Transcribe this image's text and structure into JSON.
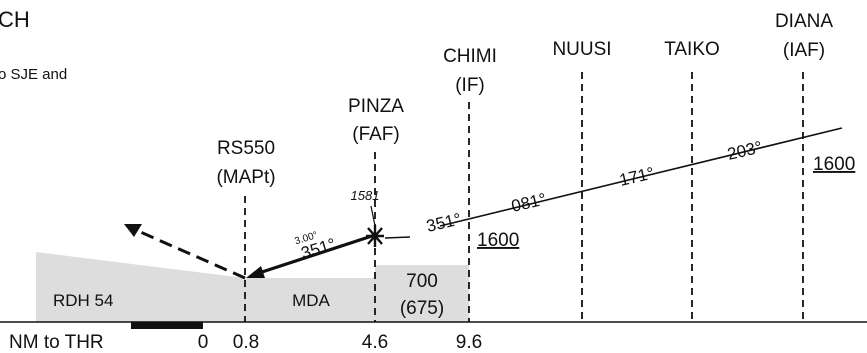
{
  "header": {
    "title_fragment": "CH",
    "note_fragment": "o SJE and"
  },
  "fixes": [
    {
      "name": "RS550",
      "role": "(MAPt)",
      "distance": "0.8"
    },
    {
      "name": "PINZA",
      "role": "(FAF)",
      "distance": "4.6"
    },
    {
      "name": "CHIMI",
      "role": "(IF)",
      "distance": "9.6"
    },
    {
      "name": "NUUSI",
      "role": ""
    },
    {
      "name": "TAIKO",
      "role": ""
    },
    {
      "name": "DIANA",
      "role": "(IAF)"
    }
  ],
  "segments": {
    "final": {
      "course": "351°",
      "glidepath": "3.00°"
    },
    "intermediate": {
      "course": "351°",
      "altitude": "1600"
    },
    "initial": [
      {
        "course": "081°"
      },
      {
        "course": "171°"
      },
      {
        "course": "203°"
      }
    ],
    "iaf_altitude": "1600"
  },
  "profile": {
    "faf_crossing_altitude": "1581",
    "rdh": "RDH 54",
    "mda": "MDA",
    "minimum_altitude": "700",
    "minimum_height": "(675)"
  },
  "scale": {
    "label": "NM to THR",
    "zero": "0"
  },
  "colors": {
    "terrain": "#dddddd",
    "ink": "#111111"
  }
}
